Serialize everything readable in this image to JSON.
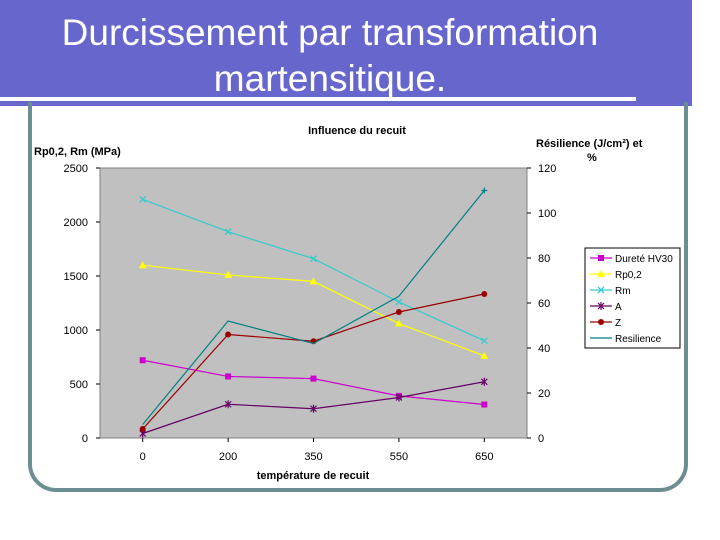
{
  "slide": {
    "title_line1": "Durcissement par transformation",
    "title_line2": "martensitique."
  },
  "colors": {
    "title_bg": "#6666cc",
    "frame": "#6c8e92",
    "plot_bg": "#c0c0c0"
  },
  "chart_data": {
    "type": "line",
    "title": "Influence du recuit",
    "xlabel": "température de recuit",
    "ylabel_left": "Rp0,2, Rm (MPa)",
    "ylabel_right_line1": "Résilience (J/cm²) et",
    "ylabel_right_line2": "%",
    "categories": [
      "0",
      "200",
      "350",
      "550",
      "650"
    ],
    "y_left": {
      "min": 0,
      "max": 2500,
      "ticks": [
        "0",
        "500",
        "1000",
        "1500",
        "2000",
        "2500"
      ]
    },
    "y_right": {
      "min": 0,
      "max": 120,
      "ticks": [
        "0",
        "20",
        "40",
        "60",
        "80",
        "100",
        "120"
      ]
    },
    "grid": false,
    "legend_position": "right",
    "series": [
      {
        "name": "Dureté HV30",
        "axis": "left",
        "color": "#cc00cc",
        "marker": "square",
        "values": [
          720,
          570,
          550,
          390,
          310
        ]
      },
      {
        "name": "Rp0,2",
        "axis": "left",
        "color": "#ffff00",
        "marker": "triangle",
        "values": [
          1600,
          1510,
          1450,
          1060,
          760
        ]
      },
      {
        "name": "Rm",
        "axis": "left",
        "color": "#33cccc",
        "marker": "x",
        "values": [
          2210,
          1910,
          1660,
          1260,
          900
        ]
      },
      {
        "name": "A",
        "axis": "right",
        "color": "#660066",
        "marker": "star",
        "values": [
          2,
          15,
          13,
          18,
          25
        ]
      },
      {
        "name": "Z",
        "axis": "right",
        "color": "#990000",
        "marker": "circle",
        "values": [
          4,
          46,
          43,
          56,
          64
        ]
      },
      {
        "name": "Resilience",
        "axis": "right",
        "color": "#008080",
        "marker": "plus",
        "values": [
          6,
          52,
          42,
          63,
          110
        ]
      }
    ]
  }
}
